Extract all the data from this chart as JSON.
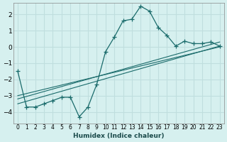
{
  "xlabel": "Humidex (Indice chaleur)",
  "ylabel": "",
  "background_color": "#d6f0ef",
  "grid_color": "#c0dede",
  "line_color": "#1a6b6b",
  "xlim": [
    -0.5,
    23.5
  ],
  "ylim": [
    -4.7,
    2.7
  ],
  "yticks": [
    -4,
    -3,
    -2,
    -1,
    0,
    1,
    2
  ],
  "xtick_labels": [
    "0",
    "1",
    "2",
    "3",
    "4",
    "5",
    "6",
    "7",
    "8",
    "9",
    "10",
    "11",
    "12",
    "13",
    "14",
    "15",
    "16",
    "17",
    "18",
    "19",
    "20",
    "21",
    "22",
    "23"
  ],
  "main_x": [
    0,
    1,
    2,
    3,
    4,
    5,
    6,
    7,
    8,
    9,
    10,
    11,
    12,
    13,
    14,
    15,
    16,
    17,
    18,
    19,
    20,
    21,
    22,
    23
  ],
  "main_y": [
    -1.5,
    -3.7,
    -3.7,
    -3.5,
    -3.3,
    -3.1,
    -3.1,
    -4.3,
    -3.7,
    -2.3,
    -0.3,
    0.6,
    1.6,
    1.7,
    2.5,
    2.2,
    1.2,
    0.7,
    0.05,
    0.35,
    0.2,
    0.2,
    0.3,
    0.05
  ],
  "reg_line1_x": [
    0,
    23
  ],
  "reg_line1_y": [
    -3.5,
    0.05
  ],
  "reg_line2_x": [
    0,
    23
  ],
  "reg_line2_y": [
    -3.2,
    0.3
  ],
  "reg_line3_x": [
    0,
    23
  ],
  "reg_line3_y": [
    -3.0,
    0.0
  ]
}
